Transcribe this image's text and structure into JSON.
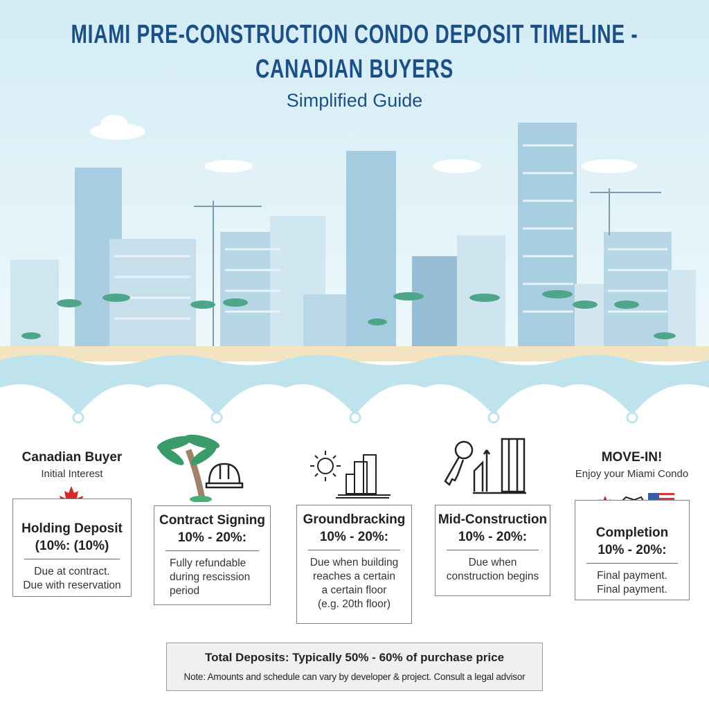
{
  "header": {
    "title_line1": "MIAMI PRE-CONSTRUCTION CONDO DEPOSIT TIMELINE -",
    "title_line2": "CANADIAN BUYERS",
    "subtitle": "Simplified Guide"
  },
  "start": {
    "title": "Canadian Buyer",
    "subtitle": "Initial Interest"
  },
  "end": {
    "title": "MOVE-IN!",
    "subtitle": "Enjoy your Miami Condo"
  },
  "stages": [
    {
      "title": "Holding Deposit",
      "amount": "(10%: (10%)",
      "desc": [
        "Due at contract.",
        "Due with reservation"
      ],
      "icon": "maple-leaf-icon"
    },
    {
      "title": "Contract Signing",
      "amount": "10% - 20%:",
      "desc": [
        "Fully refundable",
        "during rescission",
        "period"
      ],
      "icon": "palm-hardhat-icon"
    },
    {
      "title": "Groundbracking",
      "amount": "10% - 20%:",
      "desc": [
        "Due when building",
        "reaches a certain",
        "a certain floor",
        "(e.g. 20th floor)"
      ],
      "icon": "sun-buildings-icon"
    },
    {
      "title": "Mid-Construction",
      "amount": "10% - 20%:",
      "desc": [
        "Due when",
        "construction begins"
      ],
      "icon": "key-tower-icon"
    },
    {
      "title": "Completion",
      "amount": "10% - 20%:",
      "desc": [
        "Final payment.",
        "Final payment."
      ],
      "icon": "flags-handshake-icon"
    }
  ],
  "footer": {
    "total": "Total Deposits: Typically 50% - 60% of purchase price",
    "note": "Note: Amounts and schedule can vary by developer & project. Consult a legal advisor"
  },
  "colors": {
    "title": "#1b4f86",
    "sky": "#d6eef6",
    "building": "#a9cde0",
    "water": "#bfe3ec",
    "sand": "#f3e3c0",
    "maple": "#d42a2a",
    "palm": "#3a9a6a"
  }
}
